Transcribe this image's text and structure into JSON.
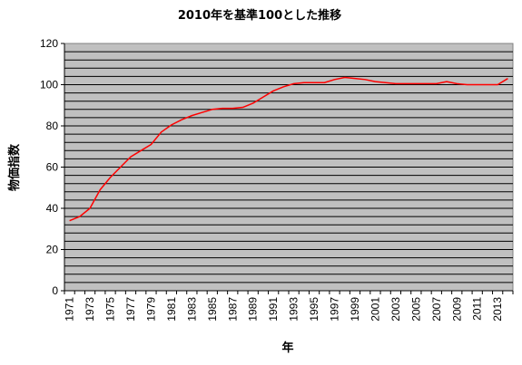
{
  "chart_data": {
    "type": "line",
    "title": "2010年を基準100とした推移",
    "xlabel": "年",
    "ylabel": "物価指数",
    "ylim": [
      0,
      120
    ],
    "y_major_ticks": [
      0,
      20,
      40,
      60,
      80,
      100,
      120
    ],
    "y_minor_step": 4,
    "x_range": [
      1971,
      2014
    ],
    "x_tick_labels": [
      "1971",
      "1973",
      "1975",
      "1977",
      "1979",
      "1981",
      "1983",
      "1985",
      "1987",
      "1989",
      "1991",
      "1993",
      "1995",
      "1997",
      "1999",
      "2001",
      "2003",
      "2005",
      "2007",
      "2009",
      "2011",
      "2013"
    ],
    "grid": true,
    "legend": "none",
    "background_color": "#c0c0c0",
    "line_color": "#ff0000",
    "series": [
      {
        "x": [
          1971,
          1972,
          1973,
          1974,
          1975,
          1976,
          1977,
          1978,
          1979,
          1980,
          1981,
          1982,
          1983,
          1984,
          1985,
          1986,
          1987,
          1988,
          1989,
          1990,
          1991,
          1992,
          1993,
          1994,
          1995,
          1996,
          1997,
          1998,
          1999,
          2000,
          2001,
          2002,
          2003,
          2004,
          2005,
          2006,
          2007,
          2008,
          2009,
          2010,
          2011,
          2012,
          2013,
          2014
        ],
        "values": [
          34,
          36,
          40,
          49,
          55,
          60,
          65,
          68,
          71,
          77,
          80.5,
          83,
          85,
          86.5,
          88,
          88.5,
          88.5,
          89,
          91,
          94,
          97,
          99,
          100.5,
          101,
          101,
          101,
          102.5,
          103.5,
          103,
          102.5,
          101.5,
          101,
          100.5,
          100.5,
          100.5,
          100.5,
          100.5,
          101.5,
          100.5,
          100,
          100,
          100,
          100,
          103
        ]
      }
    ]
  }
}
